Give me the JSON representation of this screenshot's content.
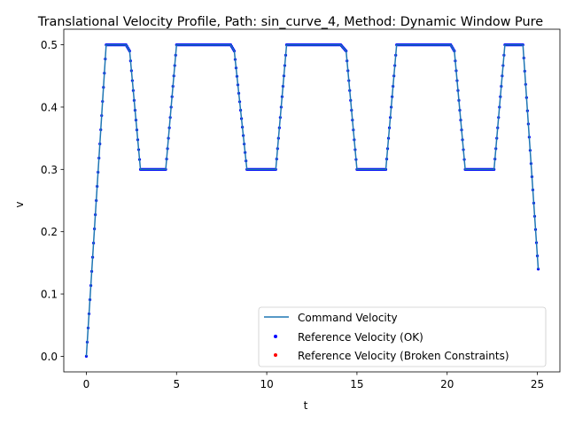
{
  "chart_data": {
    "type": "line",
    "title": "Translational Velocity Profile, Path: sin_curve_4, Method: Dynamic Window Pure",
    "xlabel": "t",
    "ylabel": "v",
    "xlim": [
      -1.25,
      26.25
    ],
    "ylim": [
      -0.025,
      0.525
    ],
    "xticks": [
      0,
      5,
      10,
      15,
      20,
      25
    ],
    "yticks": [
      0.0,
      0.1,
      0.2,
      0.3,
      0.4,
      0.5
    ],
    "xtick_labels": [
      "0",
      "5",
      "10",
      "15",
      "20",
      "25"
    ],
    "ytick_labels": [
      "0.0",
      "0.1",
      "0.2",
      "0.3",
      "0.4",
      "0.5"
    ],
    "grid": false,
    "legend_position": "lower-right",
    "colors": {
      "command_line": "#1f77b4",
      "ok_marker": "#0000ff",
      "broken_marker": "#ff0000"
    },
    "series": [
      {
        "name": "Command Velocity",
        "kind": "line",
        "x": [
          0,
          1.1,
          2.2,
          2.4,
          3.0,
          4.4,
          5.0,
          8.0,
          8.2,
          8.9,
          10.5,
          11.1,
          14.1,
          14.4,
          15.0,
          16.6,
          17.2,
          20.2,
          20.4,
          21.0,
          22.6,
          23.2,
          24.2,
          25.05
        ],
        "y": [
          0.0,
          0.5,
          0.5,
          0.49,
          0.3,
          0.3,
          0.5,
          0.5,
          0.49,
          0.3,
          0.3,
          0.5,
          0.5,
          0.49,
          0.3,
          0.3,
          0.5,
          0.5,
          0.49,
          0.3,
          0.3,
          0.5,
          0.5,
          0.14
        ]
      },
      {
        "name": "Reference Velocity (OK)",
        "kind": "scatter",
        "x": [
          0,
          1.1,
          2.2,
          2.4,
          3.0,
          4.4,
          5.0,
          8.0,
          8.2,
          8.9,
          10.5,
          11.1,
          14.1,
          14.4,
          15.0,
          16.6,
          17.2,
          20.2,
          20.4,
          21.0,
          22.6,
          23.2,
          24.2,
          25.05
        ],
        "y": [
          0.0,
          0.5,
          0.5,
          0.49,
          0.3,
          0.3,
          0.5,
          0.5,
          0.49,
          0.3,
          0.3,
          0.5,
          0.5,
          0.49,
          0.3,
          0.3,
          0.5,
          0.5,
          0.49,
          0.3,
          0.3,
          0.5,
          0.5,
          0.14
        ]
      },
      {
        "name": "Reference Velocity (Broken Constraints)",
        "kind": "scatter",
        "x": [],
        "y": []
      }
    ]
  }
}
